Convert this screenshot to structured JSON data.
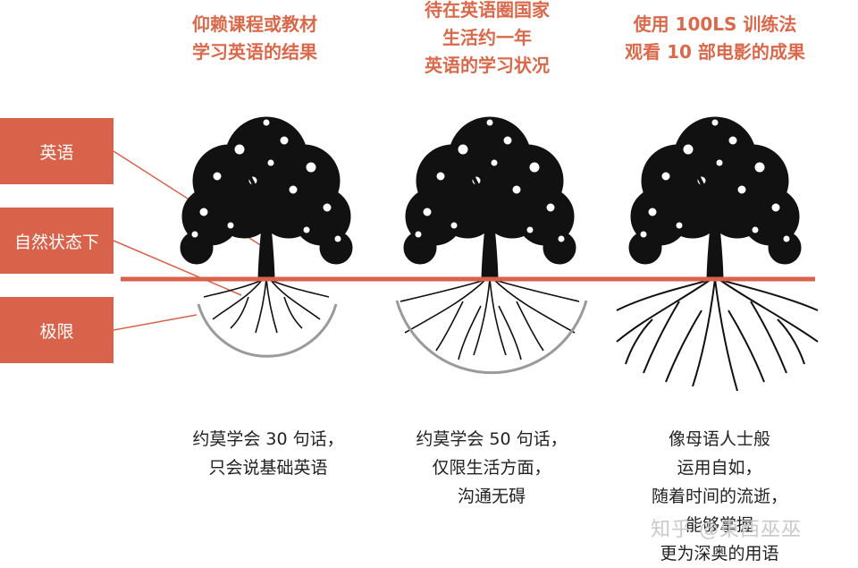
{
  "columns": [
    {
      "heading": "仰赖课程或教材\n学习英语的结果",
      "caption": "约莫学会 30 句话，\n只会说基础英语"
    },
    {
      "heading": "待在英语圈国家\n生活约一年\n英语的学习状况",
      "caption": "约莫学会 50 句话，\n仅限生活方面，\n沟通无碍"
    },
    {
      "heading": "使用 100LS 训练法\n观看 10 部电影的成果",
      "caption": "像母语人士般\n运用自如，\n随着时间的流逝，\n能够掌握\n更为深奥的用语"
    }
  ],
  "side_labels": {
    "english": "英语",
    "natural": "自然状态下",
    "limit": "极限"
  },
  "watermark": "知乎 @東西巫巫",
  "colors": {
    "accent": "#d9634a",
    "heading_text": "#d9694a",
    "arc": "#9a9a9a",
    "tree": "#111111"
  }
}
